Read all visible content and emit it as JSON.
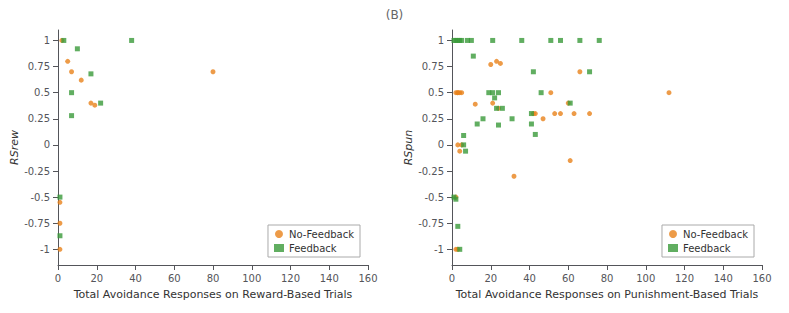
{
  "title": "(B)",
  "chart_data": [
    {
      "type": "scatter",
      "xlabel": "Total Avoidance Responses on Reward-Based Trials",
      "ylabel": "RSrew",
      "xlim": [
        0,
        160
      ],
      "ylim": [
        -1.15,
        1.1
      ],
      "xticks": [
        0,
        20,
        40,
        60,
        80,
        100,
        120,
        140,
        160
      ],
      "yticks": [
        -1,
        -0.75,
        -0.5,
        -0.25,
        0,
        0.25,
        0.5,
        0.75,
        1
      ],
      "grid": false,
      "legend": "lower right",
      "series": [
        {
          "name": "No-Feedback",
          "color": "#E8821A",
          "marker": "circle",
          "x": [
            2,
            5,
            7,
            12,
            17,
            19,
            80,
            1,
            1,
            1
          ],
          "values": [
            1.0,
            0.8,
            0.7,
            0.62,
            0.4,
            0.38,
            0.7,
            -0.55,
            -0.75,
            -1.0
          ]
        },
        {
          "name": "Feedback",
          "color": "#3A9A3A",
          "marker": "square",
          "x": [
            3,
            10,
            17,
            22,
            7,
            7,
            38,
            1,
            1
          ],
          "values": [
            1.0,
            0.92,
            0.68,
            0.4,
            0.5,
            0.28,
            1.0,
            -0.5,
            -0.87
          ]
        }
      ]
    },
    {
      "type": "scatter",
      "xlabel": "Total Avoidance Responses on Punishment-Based Trials",
      "ylabel": "RSpun",
      "xlim": [
        0,
        160
      ],
      "ylim": [
        -1.15,
        1.1
      ],
      "xticks": [
        0,
        20,
        40,
        60,
        80,
        100,
        120,
        140,
        160
      ],
      "yticks": [
        -1,
        -0.75,
        -0.5,
        -0.25,
        0,
        0.25,
        0.5,
        0.75,
        1
      ],
      "grid": false,
      "legend": "lower right",
      "series": [
        {
          "name": "No-Feedback",
          "color": "#E8821A",
          "marker": "circle",
          "x": [
            2,
            20,
            23,
            25,
            3,
            4,
            5,
            3,
            4,
            5,
            12,
            21,
            24,
            42,
            43,
            47,
            51,
            53,
            56,
            60,
            63,
            66,
            71,
            112,
            2,
            32,
            2,
            3,
            61,
            3
          ],
          "values": [
            0.5,
            0.77,
            0.8,
            0.78,
            0.5,
            0.5,
            0.0,
            0.0,
            -0.06,
            0.5,
            0.39,
            0.4,
            0.35,
            0.3,
            0.3,
            0.25,
            0.5,
            0.3,
            0.3,
            0.4,
            0.3,
            0.7,
            0.3,
            0.5,
            -0.5,
            -0.3,
            -1.0,
            -1.0,
            -0.15,
            0.5
          ]
        },
        {
          "name": "Feedback",
          "color": "#3A9A3A",
          "marker": "square",
          "x": [
            1,
            2,
            3,
            4,
            5,
            6,
            7,
            8,
            10,
            13,
            16,
            19,
            21,
            22,
            23,
            24,
            26,
            31,
            36,
            41,
            42,
            46,
            51,
            56,
            61,
            66,
            71,
            76,
            1,
            2,
            3,
            4,
            6,
            11,
            21,
            24,
            41,
            43
          ],
          "values": [
            1.0,
            1.0,
            1.0,
            1.0,
            1.0,
            0.0,
            -0.06,
            1.0,
            1.0,
            0.2,
            0.25,
            0.5,
            0.5,
            0.45,
            0.35,
            0.5,
            0.35,
            0.25,
            1.0,
            0.2,
            0.7,
            0.5,
            1.0,
            1.0,
            0.4,
            1.0,
            0.7,
            1.0,
            -0.5,
            -0.52,
            -0.78,
            -1.0,
            0.09,
            0.85,
            1.0,
            0.19,
            0.3,
            0.1
          ]
        }
      ]
    }
  ]
}
